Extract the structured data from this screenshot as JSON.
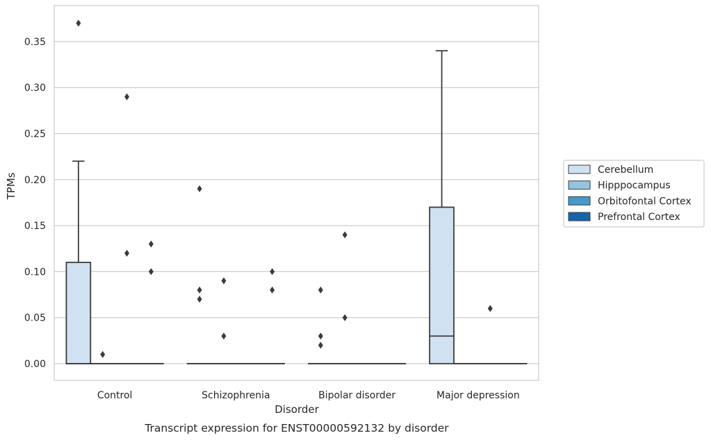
{
  "chart_data": {
    "type": "box",
    "caption": "Transcript expression for ENST00000592132 by disorder",
    "xlabel": "Disorder",
    "ylabel": "TPMs",
    "ylim": [
      -0.018,
      0.388
    ],
    "yticks": [
      0.0,
      0.05,
      0.1,
      0.15,
      0.2,
      0.25,
      0.3,
      0.35
    ],
    "ytick_labels": [
      "0.00",
      "0.05",
      "0.10",
      "0.15",
      "0.20",
      "0.25",
      "0.30",
      "0.35"
    ],
    "grid": "horizontal",
    "legend_position": "right",
    "categories": [
      "Control",
      "Schizophrenia",
      "Bipolar disorder",
      "Major depression"
    ],
    "series": [
      {
        "name": "Cerebellum",
        "color": "#d0e1f2",
        "boxes": [
          {
            "q1": 0.0,
            "median": 0.0,
            "q3": 0.11,
            "whisker_low": 0.0,
            "whisker_high": 0.22,
            "outliers": [
              0.37
            ]
          },
          {
            "q1": 0.0,
            "median": 0.0,
            "q3": 0.0,
            "whisker_low": 0.0,
            "whisker_high": 0.0,
            "outliers": [
              0.19,
              0.08,
              0.07
            ]
          },
          {
            "q1": 0.0,
            "median": 0.0,
            "q3": 0.0,
            "whisker_low": 0.0,
            "whisker_high": 0.0,
            "outliers": [
              0.08,
              0.03,
              0.02
            ]
          },
          {
            "q1": 0.0,
            "median": 0.03,
            "q3": 0.17,
            "whisker_low": 0.0,
            "whisker_high": 0.34,
            "outliers": []
          }
        ]
      },
      {
        "name": "Hipppocampus",
        "color": "#94c4df",
        "boxes": [
          {
            "q1": 0.0,
            "median": 0.0,
            "q3": 0.0,
            "whisker_low": 0.0,
            "whisker_high": 0.0,
            "outliers": [
              0.01
            ]
          },
          {
            "q1": 0.0,
            "median": 0.0,
            "q3": 0.0,
            "whisker_low": 0.0,
            "whisker_high": 0.0,
            "outliers": [
              0.09,
              0.03
            ]
          },
          {
            "q1": 0.0,
            "median": 0.0,
            "q3": 0.0,
            "whisker_low": 0.0,
            "whisker_high": 0.0,
            "outliers": [
              0.14,
              0.05
            ]
          },
          {
            "q1": 0.0,
            "median": 0.0,
            "q3": 0.0,
            "whisker_low": 0.0,
            "whisker_high": 0.0,
            "outliers": []
          }
        ]
      },
      {
        "name": "Orbitofontal Cortex",
        "color": "#4a98c9",
        "boxes": [
          {
            "q1": 0.0,
            "median": 0.0,
            "q3": 0.0,
            "whisker_low": 0.0,
            "whisker_high": 0.0,
            "outliers": [
              0.29,
              0.12
            ]
          },
          {
            "q1": 0.0,
            "median": 0.0,
            "q3": 0.0,
            "whisker_low": 0.0,
            "whisker_high": 0.0,
            "outliers": []
          },
          {
            "q1": 0.0,
            "median": 0.0,
            "q3": 0.0,
            "whisker_low": 0.0,
            "whisker_high": 0.0,
            "outliers": []
          },
          {
            "q1": 0.0,
            "median": 0.0,
            "q3": 0.0,
            "whisker_low": 0.0,
            "whisker_high": 0.0,
            "outliers": [
              0.06
            ]
          }
        ]
      },
      {
        "name": "Prefrontal Cortex",
        "color": "#1764ab",
        "boxes": [
          {
            "q1": 0.0,
            "median": 0.0,
            "q3": 0.0,
            "whisker_low": 0.0,
            "whisker_high": 0.0,
            "outliers": [
              0.13,
              0.1
            ]
          },
          {
            "q1": 0.0,
            "median": 0.0,
            "q3": 0.0,
            "whisker_low": 0.0,
            "whisker_high": 0.0,
            "outliers": [
              0.1,
              0.08
            ]
          },
          {
            "q1": 0.0,
            "median": 0.0,
            "q3": 0.0,
            "whisker_low": 0.0,
            "whisker_high": 0.0,
            "outliers": []
          },
          {
            "q1": 0.0,
            "median": 0.0,
            "q3": 0.0,
            "whisker_low": 0.0,
            "whisker_high": 0.0,
            "outliers": []
          }
        ]
      }
    ]
  }
}
